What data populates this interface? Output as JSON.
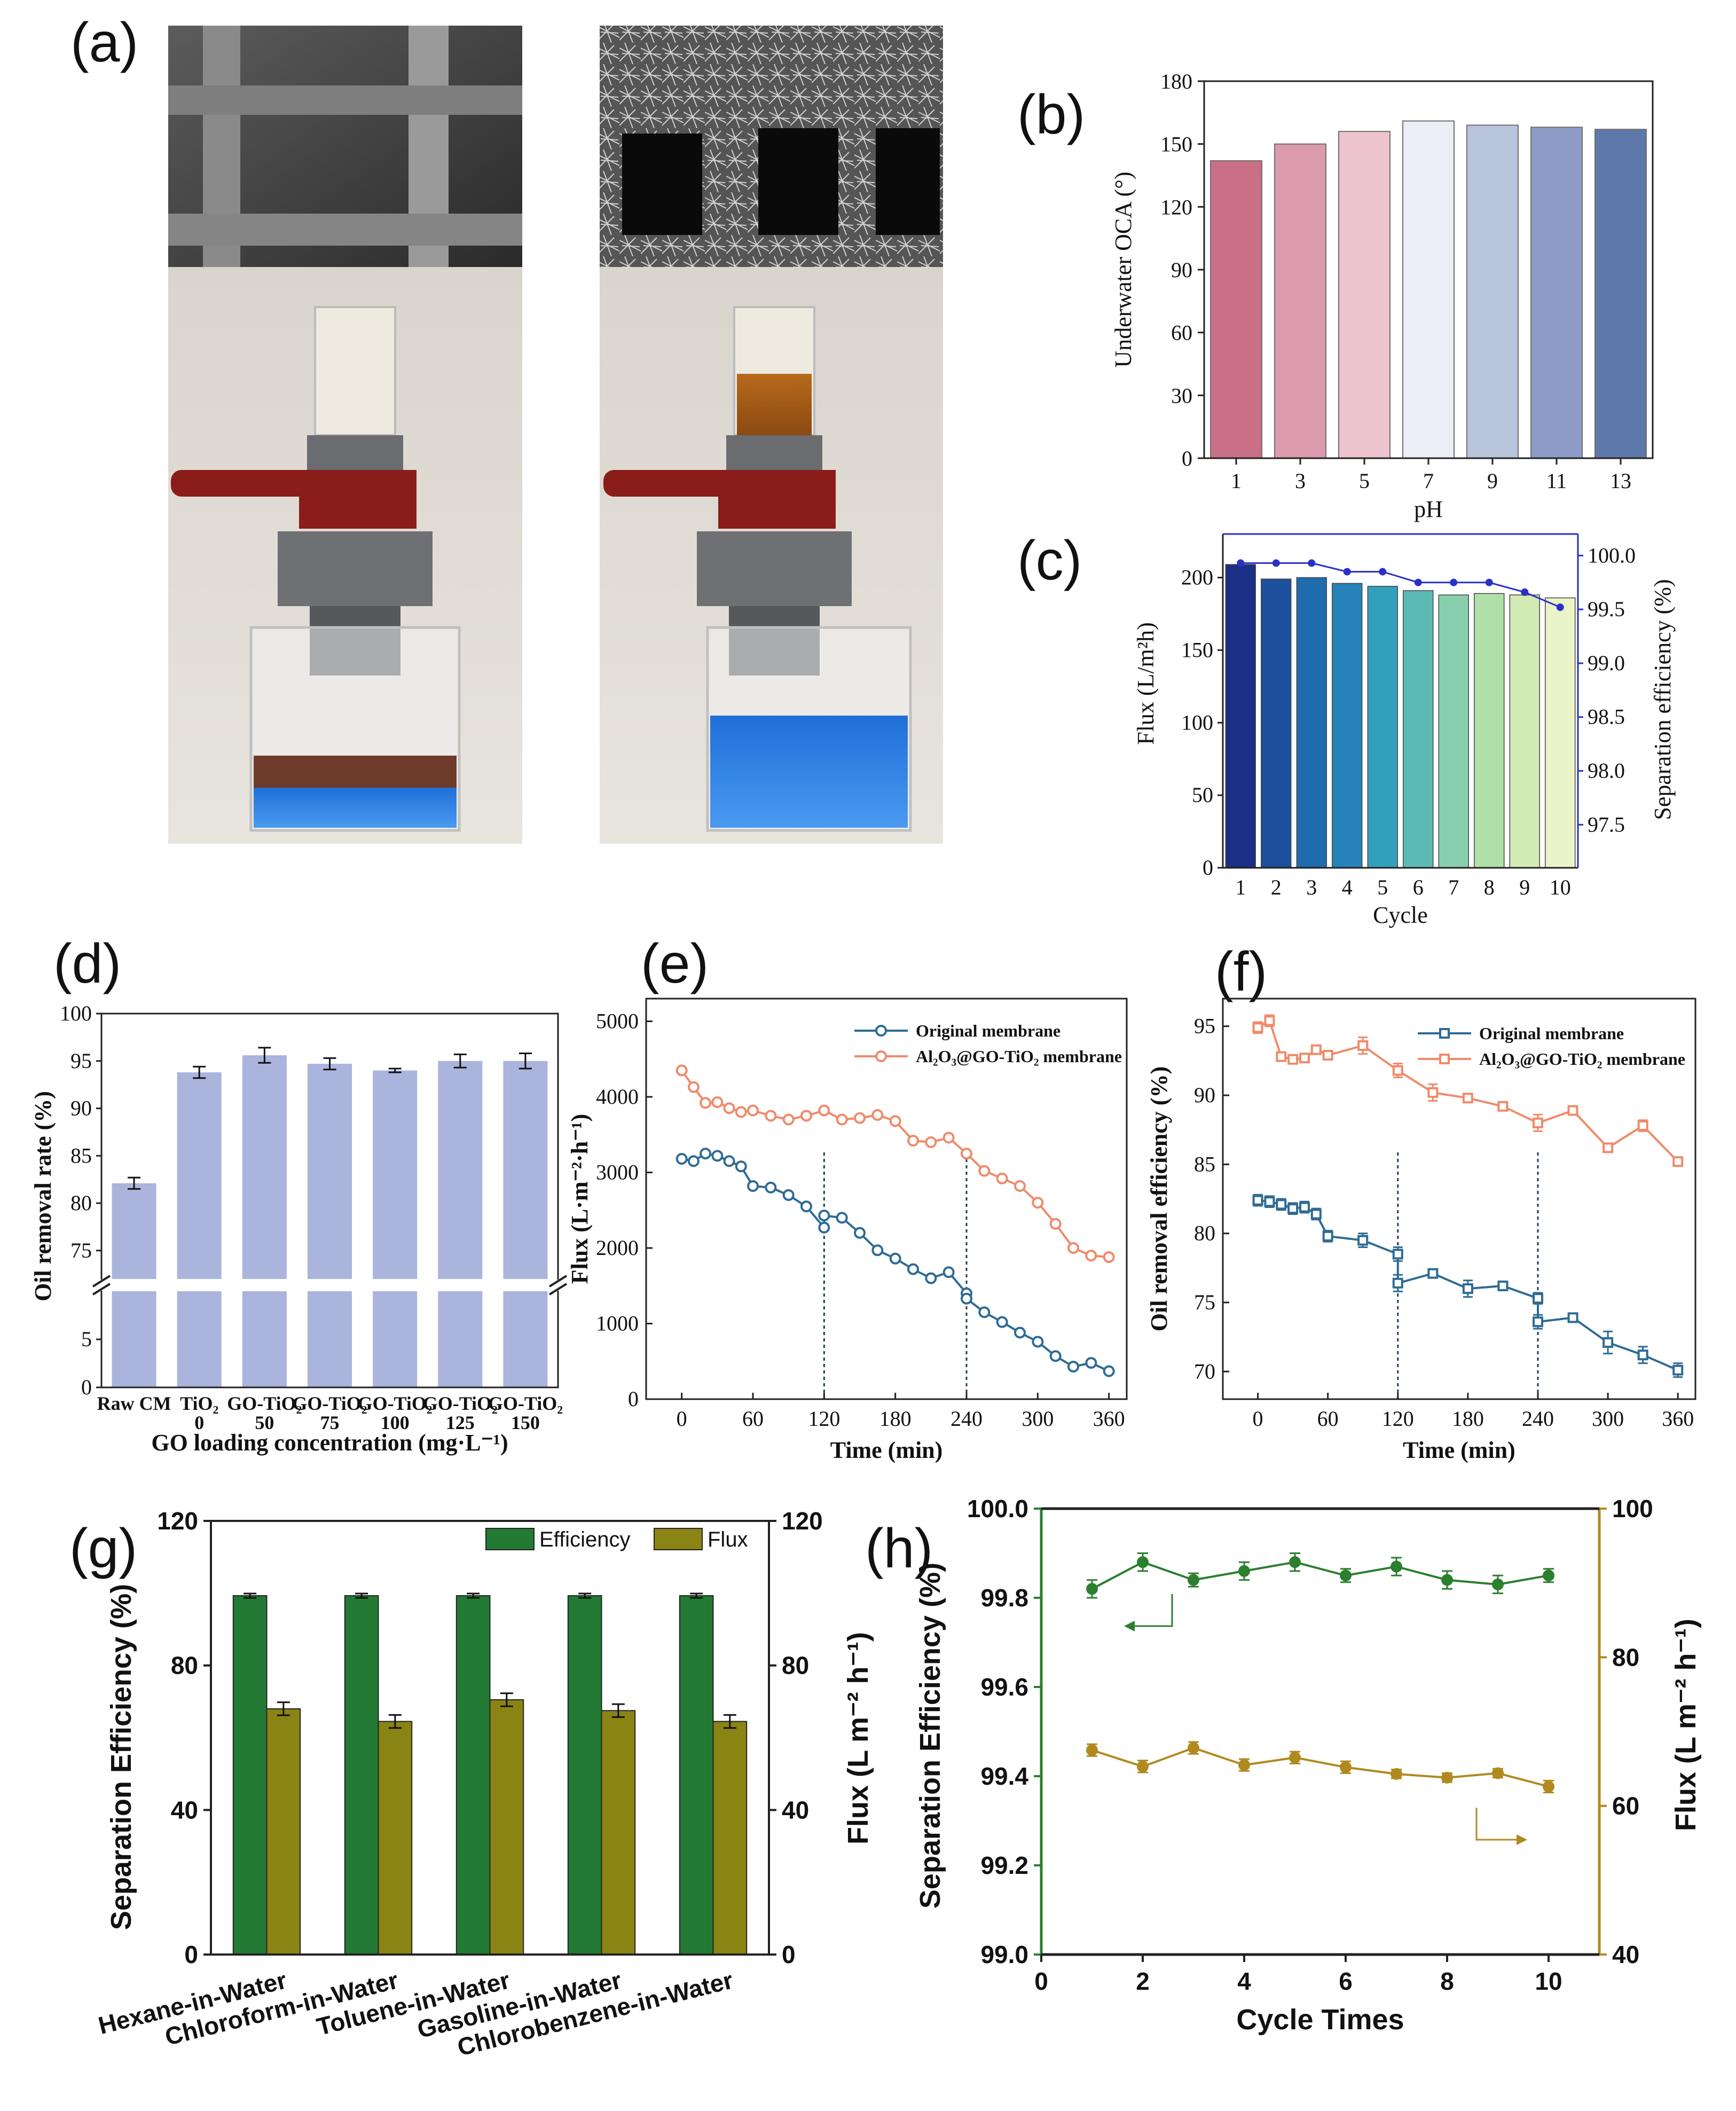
{
  "panel_labels": [
    "(a)",
    "(b)",
    "(c)",
    "(d)",
    "(e)",
    "(f)",
    "(g)",
    "(h)"
  ],
  "colors": {
    "b": [
      "#c96f86",
      "#dc9aae",
      "#edc3cf",
      "#eceef6",
      "#b9c4dd",
      "#8c9cc6",
      "#5e78a9"
    ],
    "c_bars": [
      "#1a2f85",
      "#1c4f9c",
      "#1f6cae",
      "#2682b8",
      "#32a0bd",
      "#5cbab5",
      "#89cfae",
      "#b1dfa8",
      "#d2ebb5",
      "#ebf4c8"
    ],
    "c_line": "#2a31c8",
    "d_bar": "#aab4dc",
    "e_orig": "#2e6b94",
    "e_coat": "#f08a6a",
    "g_eff": "#237a34",
    "g_flux": "#8a8414",
    "h_eff": "#2b7f2f",
    "h_flux": "#b08a1f"
  },
  "photos": {
    "left": {
      "sem": "raw mesh SEM",
      "beaker": "oil and blue water mixture"
    },
    "right": {
      "sem": "coated mesh SEM",
      "beaker": "separated blue water"
    }
  },
  "chart_data": [
    {
      "id": "b",
      "type": "bar",
      "title": "",
      "xlabel": "pH",
      "ylabel": "Underwater OCA (°)",
      "categories": [
        "1",
        "3",
        "5",
        "7",
        "9",
        "11",
        "13"
      ],
      "values": [
        142,
        150,
        156,
        161,
        159,
        158,
        157
      ],
      "ylim": [
        0,
        180
      ],
      "yticks": [
        "0",
        "30",
        "60",
        "90",
        "120",
        "150",
        "180"
      ]
    },
    {
      "id": "c",
      "type": "bar",
      "xlabel": "Cycle",
      "ylabel": "Flux (L/m²h)",
      "ylabel_right": "Separation efficiency (%)",
      "categories": [
        "1",
        "2",
        "3",
        "4",
        "5",
        "6",
        "7",
        "8",
        "9",
        "10"
      ],
      "values": [
        209,
        199,
        200,
        196,
        194,
        191,
        188,
        189,
        188,
        186
      ],
      "ylim": [
        0,
        230
      ],
      "yticks": [
        "0",
        "50",
        "100",
        "150",
        "200"
      ],
      "line": {
        "name": "Separation efficiency",
        "values": [
          99.93,
          99.93,
          99.93,
          99.85,
          99.85,
          99.75,
          99.75,
          99.75,
          99.66,
          99.52
        ]
      },
      "ylim_right": [
        97.1,
        100.2
      ],
      "yticks_right": [
        "97.5",
        "98.0",
        "98.5",
        "99.0",
        "99.5",
        "100.0"
      ]
    },
    {
      "id": "d",
      "type": "bar",
      "xlabel": "GO loading concentration (mg·L⁻¹)",
      "ylabel": "Oil removal rate (%)",
      "categories": [
        "Raw CM",
        "TiO₂",
        "GO-TiO₂",
        "GO-TiO₂",
        "GO-TiO₂",
        "GO-TiO₂",
        "GO-TiO₂"
      ],
      "sublabels": [
        "",
        "0",
        "50",
        "75",
        "100",
        "125",
        "150"
      ],
      "values": [
        82.1,
        93.8,
        95.6,
        94.7,
        94.0,
        95.0,
        95.0
      ],
      "errors": [
        0.6,
        0.6,
        0.8,
        0.6,
        0.2,
        0.7,
        0.8
      ],
      "ylim_upper": [
        72,
        100
      ],
      "ylim_lower": [
        0,
        10
      ],
      "yticks_upper": [
        "75",
        "80",
        "85",
        "90",
        "95",
        "100"
      ],
      "yticks_lower": [
        "0",
        "5"
      ]
    },
    {
      "id": "e",
      "type": "line",
      "xlabel": "Time (min)",
      "ylabel": "Flux (L·m⁻²·h⁻¹)",
      "xlim": [
        -30,
        375
      ],
      "ylim": [
        0,
        5300
      ],
      "xticks": [
        "0",
        "60",
        "120",
        "180",
        "240",
        "300",
        "360"
      ],
      "yticks": [
        "0",
        "1000",
        "2000",
        "3000",
        "4000",
        "5000"
      ],
      "vlines": [
        120,
        240
      ],
      "series": [
        {
          "name": "Original membrane",
          "x": [
            0,
            10,
            20,
            30,
            40,
            50,
            60,
            75,
            90,
            105,
            120,
            120,
            135,
            150,
            165,
            180,
            195,
            210,
            225,
            240,
            240,
            255,
            270,
            285,
            300,
            315,
            330,
            345,
            360
          ],
          "y": [
            3180,
            3150,
            3250,
            3220,
            3150,
            3080,
            2820,
            2800,
            2700,
            2550,
            2270,
            2430,
            2400,
            2200,
            1970,
            1860,
            1720,
            1600,
            1680,
            1400,
            1330,
            1150,
            1020,
            880,
            760,
            570,
            430,
            480,
            370
          ]
        },
        {
          "name": "Al₂O₃@GO-TiO₂ membrane",
          "x": [
            0,
            10,
            20,
            30,
            40,
            50,
            60,
            75,
            90,
            105,
            120,
            135,
            150,
            165,
            180,
            195,
            210,
            225,
            240,
            255,
            270,
            285,
            300,
            315,
            330,
            345,
            360
          ],
          "y": [
            4350,
            4130,
            3920,
            3930,
            3850,
            3800,
            3820,
            3750,
            3700,
            3750,
            3820,
            3700,
            3720,
            3760,
            3680,
            3420,
            3400,
            3460,
            3250,
            3020,
            2920,
            2820,
            2600,
            2320,
            2000,
            1900,
            1880
          ]
        }
      ]
    },
    {
      "id": "f",
      "type": "line",
      "xlabel": "Time (min)",
      "ylabel": "Oil removal efficiency (%)",
      "xlim": [
        -30,
        375
      ],
      "ylim": [
        68,
        97
      ],
      "xticks": [
        "0",
        "60",
        "120",
        "180",
        "240",
        "300",
        "360"
      ],
      "yticks": [
        "70",
        "75",
        "80",
        "85",
        "90",
        "95"
      ],
      "vlines": [
        120,
        240
      ],
      "series": [
        {
          "name": "Original membrane",
          "x": [
            0,
            10,
            20,
            30,
            40,
            50,
            60,
            90,
            120,
            120,
            150,
            180,
            210,
            240,
            240,
            270,
            300,
            330,
            360
          ],
          "y": [
            82.4,
            82.3,
            82.1,
            81.8,
            81.9,
            81.4,
            79.8,
            79.5,
            78.5,
            76.4,
            77.1,
            76.0,
            76.2,
            75.3,
            73.6,
            73.9,
            72.1,
            71.2,
            70.1
          ],
          "errors": [
            0.4,
            0.4,
            0.4,
            0.4,
            0.4,
            0.4,
            0.4,
            0.5,
            0.5,
            0.6,
            0.3,
            0.6,
            0.3,
            0.4,
            0.5,
            0.3,
            0.8,
            0.6,
            0.5
          ]
        },
        {
          "name": "Al₂O₃@GO-TiO₂ membrane",
          "x": [
            0,
            10,
            20,
            30,
            40,
            50,
            60,
            90,
            120,
            150,
            180,
            210,
            240,
            270,
            300,
            330,
            360
          ],
          "y": [
            94.9,
            95.4,
            92.8,
            92.6,
            92.7,
            93.3,
            92.9,
            93.6,
            91.8,
            90.2,
            89.8,
            89.2,
            88.0,
            88.9,
            86.2,
            87.8,
            85.2
          ],
          "errors": [
            0.4,
            0.4,
            0.3,
            0.3,
            0.3,
            0.3,
            0.3,
            0.6,
            0.5,
            0.6,
            0.3,
            0.3,
            0.6,
            0.3,
            0.3,
            0.4,
            0.3
          ]
        }
      ]
    },
    {
      "id": "g",
      "type": "bar",
      "xlabel": "",
      "ylabel": "Separation Efficiency (%)",
      "ylabel_right": "Flux (L m⁻² h⁻¹)",
      "categories": [
        "Hexane-in-Water",
        "Chloroform-in-Water",
        "Toluene-in-Water",
        "Gasoline-in-Water",
        "Chlorobenzene-in-Water"
      ],
      "ylim": [
        0,
        120
      ],
      "ylim_right": [
        0,
        120
      ],
      "yticks": [
        "0",
        "40",
        "80",
        "120"
      ],
      "yticks_right": [
        "0",
        "40",
        "80",
        "120"
      ],
      "series": [
        {
          "name": "Efficiency",
          "values": [
            99.3,
            99.3,
            99.3,
            99.3,
            99.3
          ],
          "errors": [
            0.6,
            0.6,
            0.6,
            0.6,
            0.6
          ]
        },
        {
          "name": "Flux",
          "values": [
            68,
            64.5,
            70.5,
            67.5,
            64.5
          ],
          "errors": [
            1.8,
            1.8,
            1.8,
            1.8,
            1.8
          ]
        }
      ]
    },
    {
      "id": "h",
      "type": "line",
      "xlabel": "Cycle Times",
      "ylabel": "Separation Efficiency (%)",
      "ylabel_right": "Flux (L m⁻² h⁻¹)",
      "xlim": [
        0,
        11
      ],
      "ylim": [
        99.0,
        100.0
      ],
      "ylim_right": [
        40,
        100
      ],
      "xticks": [
        "0",
        "2",
        "4",
        "6",
        "8",
        "10"
      ],
      "yticks": [
        "99.0",
        "99.2",
        "99.4",
        "99.6",
        "99.8",
        "100.0"
      ],
      "yticks_right": [
        "40",
        "60",
        "80",
        "100"
      ],
      "series": [
        {
          "name": "Separation Efficiency",
          "x": [
            1,
            2,
            3,
            4,
            5,
            6,
            7,
            8,
            9,
            10
          ],
          "values": [
            99.82,
            99.88,
            99.84,
            99.86,
            99.88,
            99.85,
            99.87,
            99.84,
            99.83,
            99.85
          ],
          "errors": [
            0.02,
            0.02,
            0.015,
            0.02,
            0.02,
            0.015,
            0.02,
            0.02,
            0.02,
            0.015
          ]
        },
        {
          "name": "Flux",
          "x": [
            1,
            2,
            3,
            4,
            5,
            6,
            7,
            8,
            9,
            10
          ],
          "values": [
            67.5,
            65.3,
            67.8,
            65.5,
            66.5,
            65.2,
            64.3,
            63.8,
            64.4,
            62.6
          ],
          "errors": [
            0.8,
            0.8,
            0.8,
            0.8,
            0.8,
            0.8,
            0.6,
            0.6,
            0.6,
            0.8
          ]
        }
      ]
    }
  ]
}
